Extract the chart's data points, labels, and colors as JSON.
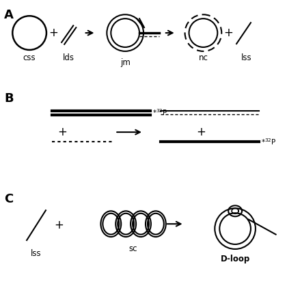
{
  "bg_color": "#ffffff",
  "line_color": "#000000",
  "panel_A_label": "A",
  "panel_B_label": "B",
  "panel_C_label": "C",
  "label_css": "css",
  "label_lds": "lds",
  "label_jm": "jm",
  "label_nc": "nc",
  "label_lss": "lss",
  "label_sc": "sc",
  "label_dloop": "D-loop"
}
